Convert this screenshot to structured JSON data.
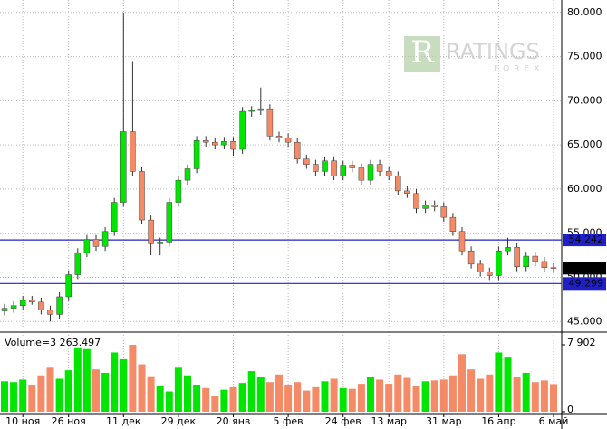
{
  "chart_data": {
    "type": "candlestick",
    "watermark": "RATINGS",
    "watermark_sub": "FOREX",
    "categories": [
      null,
      null,
      "10 ноя",
      null,
      null,
      null,
      null,
      "26 ноя",
      null,
      null,
      null,
      null,
      null,
      "11 дек",
      null,
      null,
      null,
      null,
      null,
      "29 дек",
      null,
      null,
      null,
      null,
      null,
      "20 янв",
      null,
      null,
      null,
      null,
      null,
      "5 фев",
      null,
      null,
      null,
      null,
      null,
      "24 фев",
      null,
      null,
      null,
      null,
      "13 мар",
      null,
      null,
      null,
      null,
      null,
      "31 мар",
      null,
      null,
      null,
      null,
      null,
      "16 апр",
      null,
      null,
      null,
      null,
      null,
      "6 май"
    ],
    "open": [
      46.2,
      46.5,
      46.8,
      47.4,
      47.2,
      46.3,
      45.8,
      47.8,
      50.3,
      52.8,
      54.3,
      53.5,
      55.2,
      58.5,
      66.5,
      62.0,
      56.5,
      53.8,
      54.0,
      58.5,
      61.0,
      62.3,
      65.5,
      65.3,
      65.0,
      65.4,
      64.5,
      68.8,
      68.9,
      69.1,
      66.0,
      65.8,
      65.3,
      63.4,
      62.8,
      62.0,
      63.2,
      61.5,
      62.7,
      62.4,
      61.0,
      62.8,
      62.0,
      61.5,
      59.8,
      59.5,
      57.8,
      58.2,
      58.0,
      56.8,
      55.2,
      53.0,
      51.5,
      50.6,
      50.2,
      53.0,
      53.4,
      51.2,
      52.4,
      51.8,
      51.1
    ],
    "high": [
      47.0,
      47.3,
      47.9,
      47.9,
      47.7,
      46.8,
      48.3,
      50.8,
      53.3,
      54.8,
      54.8,
      55.7,
      59.0,
      80.0,
      74.5,
      62.5,
      57.0,
      54.5,
      59.0,
      61.5,
      62.8,
      66.0,
      66.0,
      65.8,
      65.9,
      65.9,
      69.3,
      69.4,
      71.5,
      69.6,
      66.5,
      66.3,
      65.8,
      63.9,
      63.3,
      63.7,
      63.7,
      63.2,
      63.2,
      62.9,
      63.3,
      63.3,
      62.5,
      62.0,
      60.3,
      60.0,
      58.7,
      58.7,
      58.5,
      57.3,
      55.7,
      53.5,
      52.0,
      51.1,
      53.5,
      54.5,
      53.9,
      52.9,
      52.9,
      52.3,
      51.6
    ],
    "low": [
      45.7,
      46.0,
      46.3,
      46.9,
      45.8,
      45.0,
      45.3,
      47.3,
      49.8,
      52.3,
      53.0,
      53.0,
      54.7,
      58.0,
      61.5,
      56.0,
      52.5,
      52.5,
      53.5,
      58.0,
      60.5,
      61.8,
      64.8,
      64.5,
      64.5,
      63.8,
      64.0,
      68.2,
      68.4,
      65.5,
      65.3,
      64.8,
      62.9,
      62.3,
      61.5,
      61.5,
      61.0,
      61.0,
      61.9,
      60.5,
      60.5,
      61.5,
      61.0,
      59.3,
      59.0,
      57.3,
      57.3,
      57.5,
      56.3,
      54.7,
      52.5,
      51.0,
      50.1,
      49.7,
      49.7,
      52.5,
      50.7,
      50.7,
      51.3,
      50.6,
      50.5
    ],
    "close": [
      46.5,
      46.8,
      47.4,
      47.2,
      46.3,
      45.8,
      47.8,
      50.3,
      52.8,
      54.3,
      53.5,
      55.2,
      58.5,
      66.5,
      62.0,
      56.5,
      53.8,
      54.0,
      58.5,
      61.0,
      62.3,
      65.5,
      65.3,
      65.0,
      65.4,
      64.5,
      68.8,
      68.9,
      69.1,
      66.0,
      65.8,
      65.3,
      63.4,
      62.8,
      62.0,
      63.2,
      61.5,
      62.7,
      62.4,
      61.0,
      62.8,
      62.0,
      61.5,
      59.8,
      59.5,
      57.8,
      58.2,
      58.0,
      56.8,
      55.2,
      53.0,
      51.5,
      50.6,
      50.2,
      53.0,
      53.4,
      51.2,
      52.4,
      51.8,
      51.1,
      51.04
    ],
    "volume": [
      3600,
      3500,
      3800,
      3200,
      4300,
      5200,
      3900,
      4900,
      7600,
      7400,
      5000,
      4600,
      7000,
      6200,
      7900,
      5600,
      4200,
      3100,
      2400,
      5200,
      4300,
      3200,
      2800,
      1900,
      2600,
      2900,
      3400,
      4800,
      4100,
      3500,
      4400,
      3200,
      3500,
      2500,
      2900,
      3600,
      3900,
      2800,
      2700,
      3300,
      4100,
      3800,
      3300,
      4400,
      4000,
      3000,
      3600,
      3700,
      3800,
      4300,
      6800,
      5000,
      3900,
      4400,
      7000,
      6500,
      4100,
      4600,
      3500,
      3700,
      3263.497
    ],
    "up_color": "#00e600",
    "down_color": "#f48a66",
    "ylim": [
      43.9,
      80.9
    ],
    "yticks": [
      {
        "value": 45,
        "label": "45.000"
      },
      {
        "value": 50,
        "label": "50.000"
      },
      {
        "value": 55,
        "label": "55.000"
      },
      {
        "value": 60,
        "label": "60.000"
      },
      {
        "value": 65,
        "label": "65.000"
      },
      {
        "value": 70,
        "label": "70.000"
      },
      {
        "value": 75,
        "label": "75.000"
      },
      {
        "value": 80,
        "label": "80.000"
      }
    ],
    "levels": [
      {
        "value": 54.242,
        "label": "54.242"
      },
      {
        "value": 49.299,
        "label": "49.299"
      }
    ],
    "level_color": "#2020c8",
    "last_price": {
      "value": 51.04,
      "label": "51.040"
    },
    "volume_label": "Volume=3 263.497",
    "volume_ylim": [
      0,
      9077
    ],
    "volume_yticks": [
      {
        "value": 7902,
        "label": "7 902"
      },
      0
    ],
    "grid": true
  }
}
